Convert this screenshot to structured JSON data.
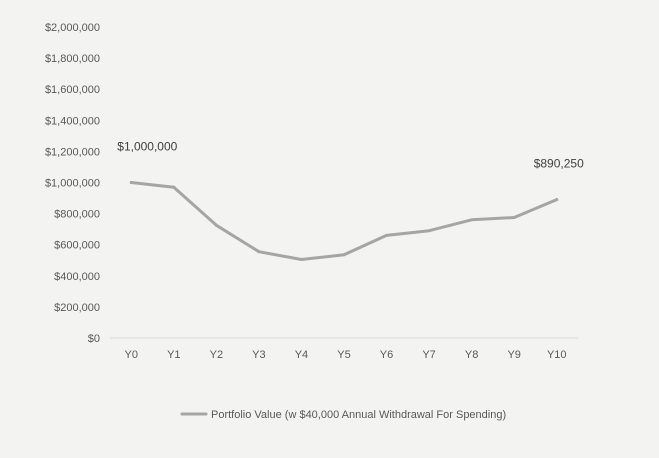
{
  "chart_data": {
    "type": "line",
    "categories": [
      "Y0",
      "Y1",
      "Y2",
      "Y3",
      "Y4",
      "Y5",
      "Y6",
      "Y7",
      "Y8",
      "Y9",
      "Y10"
    ],
    "series": [
      {
        "name": "Portfolio Value (w $40,000 Annual Withdrawal For Spending)",
        "values": [
          1000000,
          970000,
          725000,
          555000,
          505000,
          535000,
          660000,
          690000,
          760000,
          775000,
          890250
        ],
        "color": "#a5a5a5"
      }
    ],
    "yticks": [
      "$0",
      "$200,000",
      "$400,000",
      "$600,000",
      "$800,000",
      "$1,000,000",
      "$1,200,000",
      "$1,400,000",
      "$1,600,000",
      "$1,800,000",
      "$2,000,000"
    ],
    "ylim": [
      0,
      2000000
    ],
    "grid": false,
    "legend_position": "bottom",
    "data_labels": [
      {
        "index": 0,
        "text": "$1,000,000"
      },
      {
        "index": 10,
        "text": "$890,250"
      }
    ],
    "colors": {
      "background": "#f3f3f1",
      "axis": "#d9d9d9",
      "text": "#595959",
      "series": "#a5a5a5"
    }
  }
}
